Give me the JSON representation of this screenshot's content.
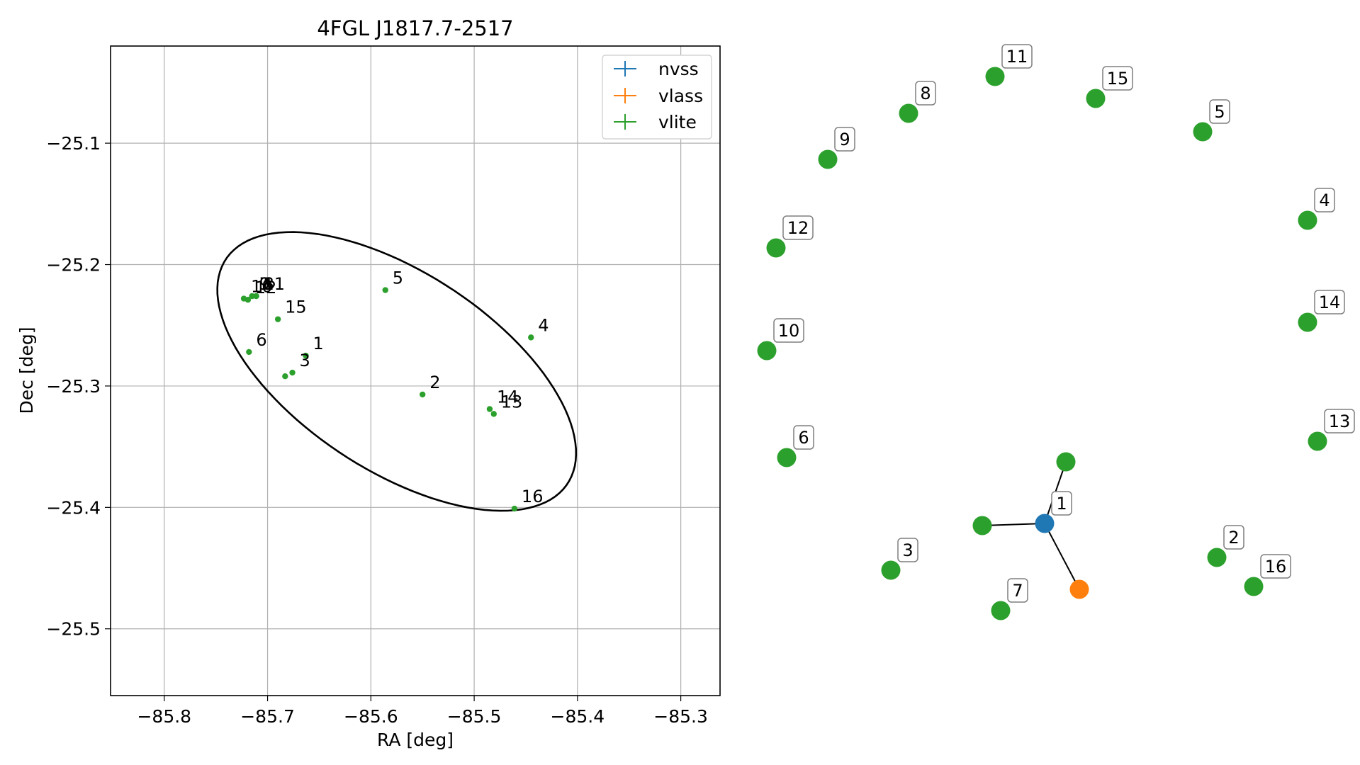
{
  "chart_data": [
    {
      "type": "scatter",
      "title": "4FGL J1817.7-2517",
      "xlabel": "RA [deg]",
      "ylabel": "Dec [deg]",
      "xlim": [
        -85.852,
        -85.262
      ],
      "ylim": [
        -25.555,
        -25.02
      ],
      "xticks": [
        -85.8,
        -85.7,
        -85.6,
        -85.5,
        -85.4,
        -85.3
      ],
      "xtick_labels": [
        "−85.8",
        "−85.7",
        "−85.6",
        "−85.5",
        "−85.4",
        "−85.3"
      ],
      "yticks": [
        -25.1,
        -25.2,
        -25.3,
        -25.4,
        -25.5
      ],
      "ytick_labels": [
        "−25.1",
        "−25.2",
        "−25.3",
        "−25.4",
        "−25.5"
      ],
      "grid": true,
      "legend_position": "top-right",
      "series": [
        {
          "name": "nvss",
          "color": "#1f77b4",
          "points": []
        },
        {
          "name": "vlass",
          "color": "#ff7f0e",
          "points": []
        },
        {
          "name": "vlite",
          "color": "#2ca02c",
          "points": [
            {
              "label": "1",
              "x": -85.663,
              "y": -25.275
            },
            {
              "label": "2",
              "x": -85.55,
              "y": -25.307
            },
            {
              "label": "3",
              "x": -85.676,
              "y": -25.289
            },
            {
              "label": "",
              "x": -85.683,
              "y": -25.292
            },
            {
              "label": "4",
              "x": -85.445,
              "y": -25.26
            },
            {
              "label": "5",
              "x": -85.586,
              "y": -25.221
            },
            {
              "label": "6",
              "x": -85.718,
              "y": -25.272
            },
            {
              "label": "7",
              "x": -85.715,
              "y": -25.226
            },
            {
              "label": "8",
              "x": -85.711,
              "y": -25.226
            },
            {
              "label": "9",
              "x": -85.715,
              "y": -25.226
            },
            {
              "label": "10",
              "x": -85.723,
              "y": -25.228
            },
            {
              "label": "11",
              "x": -85.711,
              "y": -25.226
            },
            {
              "label": "12",
              "x": -85.719,
              "y": -25.229
            },
            {
              "label": "13",
              "x": -85.481,
              "y": -25.323
            },
            {
              "label": "14",
              "x": -85.485,
              "y": -25.319
            },
            {
              "label": "15",
              "x": -85.69,
              "y": -25.245
            },
            {
              "label": "16",
              "x": -85.461,
              "y": -25.401
            }
          ]
        }
      ],
      "ellipse": {
        "center": [
          -85.575,
          -25.288
        ],
        "semi_major": 0.19,
        "semi_minor": 0.085,
        "angle_deg": -27,
        "color": "#000000"
      }
    },
    {
      "type": "network",
      "colors": {
        "nvss": "#1f77b4",
        "vlass": "#ff7f0e",
        "vlite": "#2ca02c"
      },
      "nodes": [
        {
          "id": "1",
          "label": "1",
          "survey": "nvss"
        },
        {
          "id": "v1",
          "label": "",
          "survey": "vlass"
        },
        {
          "id": "g1",
          "label": "",
          "survey": "vlite"
        },
        {
          "id": "g2",
          "label": "",
          "survey": "vlite"
        },
        {
          "id": "2",
          "label": "2",
          "survey": "vlite"
        },
        {
          "id": "3",
          "label": "3",
          "survey": "vlite"
        },
        {
          "id": "4",
          "label": "4",
          "survey": "vlite"
        },
        {
          "id": "5",
          "label": "5",
          "survey": "vlite"
        },
        {
          "id": "6",
          "label": "6",
          "survey": "vlite"
        },
        {
          "id": "7",
          "label": "7",
          "survey": "vlite"
        },
        {
          "id": "8",
          "label": "8",
          "survey": "vlite"
        },
        {
          "id": "9",
          "label": "9",
          "survey": "vlite"
        },
        {
          "id": "10",
          "label": "10",
          "survey": "vlite"
        },
        {
          "id": "11",
          "label": "11",
          "survey": "vlite"
        },
        {
          "id": "12",
          "label": "12",
          "survey": "vlite"
        },
        {
          "id": "13",
          "label": "13",
          "survey": "vlite"
        },
        {
          "id": "14",
          "label": "14",
          "survey": "vlite"
        },
        {
          "id": "15",
          "label": "15",
          "survey": "vlite"
        },
        {
          "id": "16",
          "label": "16",
          "survey": "vlite"
        }
      ],
      "edges": [
        [
          "1",
          "v1"
        ],
        [
          "1",
          "g1"
        ],
        [
          "1",
          "g2"
        ]
      ]
    }
  ]
}
